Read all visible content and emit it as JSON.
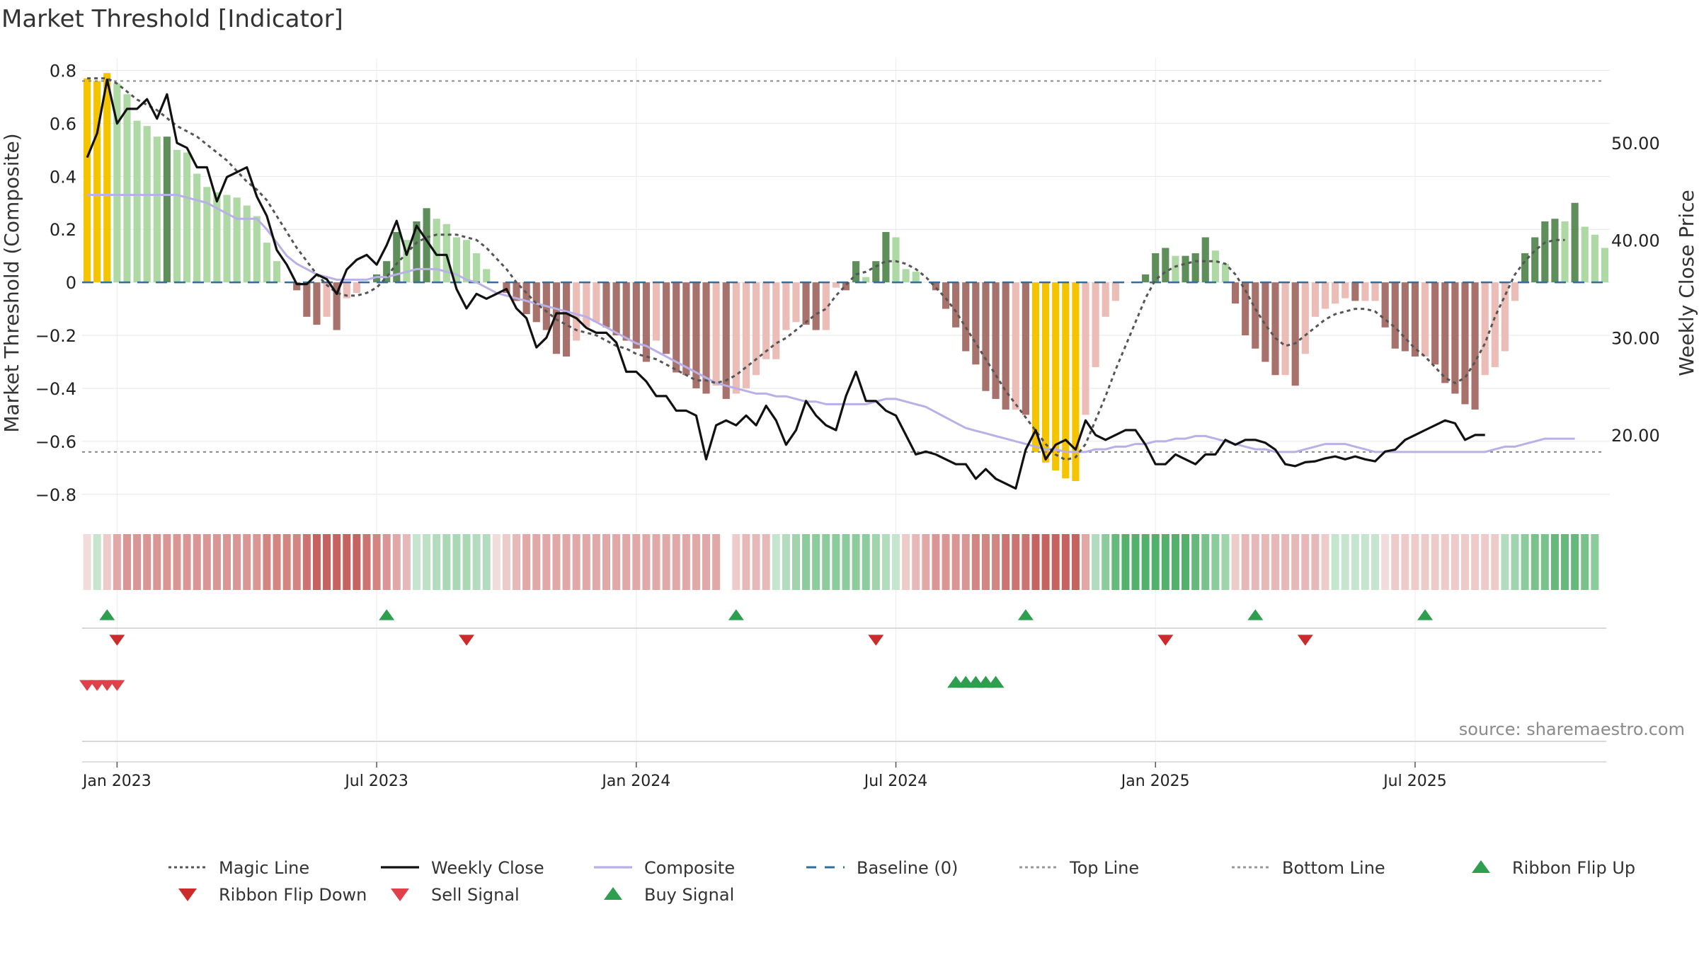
{
  "chart_data": {
    "type": "bar",
    "title": "Market Threshold [Indicator]",
    "ylabel": "Market Threshold (Composite)",
    "y2label": "Weekly Close Price",
    "source": "source: sharemaestro.com",
    "ylim": [
      -0.87,
      0.82
    ],
    "y2lim": [
      12,
      58
    ],
    "yticks": [
      "0.8",
      "0.6",
      "0.4",
      "0.2",
      "0",
      "−0.2",
      "−0.4",
      "−0.6",
      "−0.8"
    ],
    "yticks_values": [
      0.8,
      0.6,
      0.4,
      0.2,
      0,
      -0.2,
      -0.4,
      -0.6,
      -0.8
    ],
    "y2ticks": [
      "50.00",
      "40.00",
      "30.00",
      "20.00"
    ],
    "y2ticks_values": [
      50,
      40,
      30,
      20
    ],
    "xticks": [
      "Jan 2023",
      "Jul 2023",
      "Jan 2024",
      "Jul 2024",
      "Jan 2025",
      "Jul 2025"
    ],
    "xticks_weeks": [
      3,
      29,
      55,
      81,
      107,
      133
    ],
    "top_line": 0.76,
    "bottom_line": -0.64,
    "baseline": 0,
    "grid": true,
    "legend_position": "bottom",
    "x_dates": {
      "first_week": "2022-12-19",
      "last_week": "2025-09-15"
    },
    "composite_bars": [
      0.77,
      0.76,
      0.79,
      0.75,
      0.71,
      0.61,
      0.59,
      0.55,
      0.55,
      0.5,
      0.49,
      0.41,
      0.36,
      0.34,
      0.33,
      0.32,
      0.29,
      0.25,
      0.15,
      0.08,
      0.0,
      -0.03,
      -0.13,
      -0.16,
      -0.13,
      -0.18,
      -0.06,
      -0.04,
      0.0,
      0.03,
      0.08,
      0.19,
      0.16,
      0.23,
      0.28,
      0.24,
      0.22,
      0.17,
      0.16,
      0.11,
      0.05,
      0.0,
      -0.04,
      -0.07,
      -0.12,
      -0.15,
      -0.18,
      -0.27,
      -0.28,
      -0.22,
      -0.17,
      -0.15,
      -0.17,
      -0.2,
      -0.22,
      -0.25,
      -0.3,
      -0.22,
      -0.27,
      -0.34,
      -0.35,
      -0.4,
      -0.42,
      -0.39,
      -0.44,
      -0.42,
      -0.4,
      -0.35,
      -0.29,
      -0.29,
      -0.18,
      -0.15,
      -0.16,
      -0.18,
      -0.18,
      -0.02,
      -0.03,
      0.08,
      0.02,
      0.08,
      0.19,
      0.17,
      0.05,
      0.04,
      0.0,
      -0.03,
      -0.1,
      -0.17,
      -0.26,
      -0.31,
      -0.41,
      -0.44,
      -0.48,
      -0.48,
      -0.5,
      -0.64,
      -0.68,
      -0.71,
      -0.74,
      -0.75,
      -0.5,
      -0.32,
      -0.13,
      -0.07,
      0.0,
      0.0,
      0.03,
      0.11,
      0.13,
      0.1,
      0.1,
      0.11,
      0.17,
      0.12,
      0.07,
      -0.08,
      -0.2,
      -0.25,
      -0.3,
      -0.35,
      -0.35,
      -0.39,
      -0.27,
      -0.13,
      -0.1,
      -0.08,
      -0.06,
      -0.07,
      -0.07,
      -0.07,
      -0.17,
      -0.25,
      -0.26,
      -0.28,
      -0.28,
      -0.31,
      -0.38,
      -0.42,
      -0.46,
      -0.48,
      -0.35,
      -0.32,
      -0.26,
      -0.07,
      0.11,
      0.17,
      0.23,
      0.24,
      0.23,
      0.3,
      0.21,
      0.18,
      0.13
    ],
    "weekly_close": [
      48.5,
      51,
      56.5,
      52,
      53.5,
      53.5,
      54.5,
      52.5,
      55,
      50,
      49.5,
      47.5,
      47.5,
      44,
      46.5,
      47,
      47.5,
      44.5,
      42.5,
      39,
      37.5,
      35.5,
      35.5,
      36.5,
      36,
      34.5,
      37,
      38,
      38.5,
      37.5,
      39.5,
      42,
      38.5,
      41.5,
      40,
      38.5,
      38.5,
      35,
      33,
      34.5,
      34,
      34.5,
      35,
      33,
      32,
      29,
      30,
      32.5,
      32.5,
      32,
      31,
      30.5,
      30.5,
      29.5,
      26.5,
      26.5,
      25.5,
      24,
      24,
      22.5,
      22.5,
      22,
      17.5,
      21,
      21.5,
      21,
      22,
      21,
      23,
      21.5,
      19,
      20.5,
      23.5,
      22,
      21,
      20.5,
      24,
      26.5,
      23.5,
      23.5,
      22.5,
      22,
      20,
      18,
      18.3,
      18,
      17.5,
      17,
      17,
      15.5,
      16.5,
      15.5,
      15,
      14.5,
      18.5,
      20.5,
      17.5,
      19,
      19.5,
      18.5,
      21.5,
      20,
      19.5,
      20,
      20.5,
      20.5,
      19,
      17,
      17,
      18,
      17.5,
      17,
      18,
      18,
      19.5,
      19,
      19.5,
      19.5,
      19.2,
      18.5,
      17,
      16.8,
      17.2,
      17.3,
      17.6,
      17.8,
      17.5,
      17.8,
      17.5,
      17.3,
      18.3,
      18.5,
      19.5,
      20,
      20.5,
      21,
      21.5,
      21.2,
      19.5,
      20,
      20
    ],
    "composite_line": [
      0.33,
      0.33,
      0.33,
      0.33,
      0.33,
      0.33,
      0.33,
      0.33,
      0.33,
      0.33,
      0.32,
      0.31,
      0.3,
      0.28,
      0.26,
      0.24,
      0.24,
      0.24,
      0.2,
      0.15,
      0.1,
      0.07,
      0.05,
      0.03,
      0.02,
      0.01,
      0.01,
      0.01,
      0.01,
      0.02,
      0.02,
      0.03,
      0.04,
      0.05,
      0.05,
      0.05,
      0.04,
      0.03,
      0.01,
      0.0,
      -0.02,
      -0.04,
      -0.05,
      -0.06,
      -0.07,
      -0.08,
      -0.09,
      -0.1,
      -0.11,
      -0.12,
      -0.13,
      -0.15,
      -0.17,
      -0.19,
      -0.21,
      -0.23,
      -0.24,
      -0.26,
      -0.28,
      -0.3,
      -0.32,
      -0.34,
      -0.36,
      -0.38,
      -0.39,
      -0.4,
      -0.41,
      -0.42,
      -0.42,
      -0.43,
      -0.43,
      -0.44,
      -0.45,
      -0.45,
      -0.46,
      -0.46,
      -0.46,
      -0.46,
      -0.46,
      -0.45,
      -0.44,
      -0.44,
      -0.45,
      -0.46,
      -0.47,
      -0.49,
      -0.51,
      -0.53,
      -0.55,
      -0.56,
      -0.57,
      -0.58,
      -0.59,
      -0.6,
      -0.61,
      -0.62,
      -0.63,
      -0.63,
      -0.64,
      -0.64,
      -0.64,
      -0.63,
      -0.63,
      -0.62,
      -0.62,
      -0.61,
      -0.61,
      -0.6,
      -0.6,
      -0.59,
      -0.59,
      -0.58,
      -0.58,
      -0.59,
      -0.6,
      -0.61,
      -0.62,
      -0.63,
      -0.63,
      -0.64,
      -0.64,
      -0.64,
      -0.63,
      -0.62,
      -0.61,
      -0.61,
      -0.61,
      -0.62,
      -0.63,
      -0.64,
      -0.64,
      -0.64,
      -0.64,
      -0.64,
      -0.64,
      -0.64,
      -0.64,
      -0.64,
      -0.64,
      -0.64,
      -0.64,
      -0.63,
      -0.62,
      -0.62,
      -0.61,
      -0.6,
      -0.59,
      -0.59,
      -0.59,
      -0.59
    ],
    "magic_line": [
      0.77,
      0.77,
      0.77,
      0.75,
      0.72,
      0.69,
      0.67,
      0.65,
      0.62,
      0.59,
      0.57,
      0.55,
      0.52,
      0.49,
      0.46,
      0.42,
      0.38,
      0.35,
      0.31,
      0.25,
      0.19,
      0.13,
      0.08,
      0.03,
      -0.01,
      -0.04,
      -0.05,
      -0.05,
      -0.04,
      -0.02,
      0.02,
      0.07,
      0.11,
      0.15,
      0.17,
      0.18,
      0.18,
      0.18,
      0.17,
      0.16,
      0.13,
      0.09,
      0.05,
      0.0,
      -0.04,
      -0.08,
      -0.11,
      -0.14,
      -0.16,
      -0.18,
      -0.19,
      -0.2,
      -0.22,
      -0.24,
      -0.25,
      -0.27,
      -0.28,
      -0.29,
      -0.31,
      -0.33,
      -0.35,
      -0.37,
      -0.37,
      -0.38,
      -0.37,
      -0.35,
      -0.32,
      -0.29,
      -0.26,
      -0.23,
      -0.21,
      -0.18,
      -0.15,
      -0.12,
      -0.1,
      -0.05,
      -0.01,
      0.03,
      0.04,
      0.06,
      0.08,
      0.08,
      0.07,
      0.05,
      0.02,
      -0.02,
      -0.06,
      -0.11,
      -0.17,
      -0.23,
      -0.29,
      -0.35,
      -0.41,
      -0.46,
      -0.51,
      -0.56,
      -0.61,
      -0.65,
      -0.67,
      -0.66,
      -0.61,
      -0.52,
      -0.43,
      -0.33,
      -0.24,
      -0.15,
      -0.06,
      0.01,
      0.04,
      0.06,
      0.07,
      0.08,
      0.08,
      0.08,
      0.07,
      0.03,
      -0.03,
      -0.1,
      -0.16,
      -0.21,
      -0.24,
      -0.23,
      -0.2,
      -0.17,
      -0.14,
      -0.12,
      -0.11,
      -0.1,
      -0.1,
      -0.11,
      -0.14,
      -0.17,
      -0.21,
      -0.25,
      -0.28,
      -0.32,
      -0.36,
      -0.38,
      -0.36,
      -0.3,
      -0.23,
      -0.13,
      -0.05,
      0.03,
      0.08,
      0.12,
      0.15,
      0.16,
      0.16
    ],
    "ribbon_strength": [
      -0.2,
      0.3,
      -0.3,
      -0.5,
      -0.6,
      -0.6,
      -0.6,
      -0.6,
      -0.6,
      -0.6,
      -0.6,
      -0.6,
      -0.6,
      -0.6,
      -0.6,
      -0.6,
      -0.6,
      -0.6,
      -0.7,
      -0.7,
      -0.7,
      -0.7,
      -0.8,
      -0.9,
      -0.9,
      -0.9,
      -0.9,
      -0.9,
      -0.8,
      -0.7,
      -0.6,
      -0.5,
      -0.4,
      0.3,
      0.35,
      0.4,
      0.45,
      0.45,
      0.45,
      0.4,
      0.4,
      -0.2,
      -0.3,
      -0.4,
      -0.5,
      -0.5,
      -0.5,
      -0.5,
      -0.5,
      -0.5,
      -0.5,
      -0.5,
      -0.5,
      -0.5,
      -0.5,
      -0.5,
      -0.5,
      -0.5,
      -0.5,
      -0.5,
      -0.5,
      -0.5,
      -0.5,
      -0.5,
      null,
      -0.3,
      -0.4,
      -0.4,
      -0.4,
      0.3,
      0.4,
      0.5,
      0.6,
      0.6,
      0.6,
      0.6,
      0.6,
      0.6,
      0.6,
      0.5,
      0.4,
      0.3,
      -0.3,
      -0.4,
      -0.5,
      -0.6,
      -0.6,
      -0.6,
      -0.6,
      -0.7,
      -0.7,
      -0.7,
      -0.8,
      -0.8,
      -0.8,
      -0.9,
      -0.9,
      -0.9,
      -0.9,
      -0.9,
      -0.5,
      0.4,
      0.6,
      0.8,
      0.9,
      0.9,
      0.9,
      0.9,
      0.9,
      0.9,
      0.9,
      0.8,
      0.7,
      0.6,
      0.5,
      -0.3,
      -0.4,
      -0.4,
      -0.4,
      -0.4,
      -0.4,
      -0.4,
      -0.4,
      -0.4,
      -0.3,
      0.3,
      0.3,
      0.3,
      0.3,
      0.3,
      -0.2,
      -0.3,
      -0.3,
      -0.3,
      -0.3,
      -0.3,
      -0.3,
      -0.3,
      -0.3,
      -0.3,
      -0.3,
      -0.3,
      0.4,
      0.5,
      0.6,
      0.7,
      0.7,
      0.8,
      0.8,
      0.8,
      0.7,
      0.6
    ],
    "ribbon_flip_up_weeks": [
      2,
      30,
      65,
      94,
      117,
      134
    ],
    "ribbon_flip_down_weeks": [
      3,
      38,
      79,
      108,
      122
    ],
    "sell_signal_weeks": [
      0,
      1,
      2,
      3
    ],
    "buy_signal_weeks": [
      87,
      88,
      89,
      90,
      91
    ]
  },
  "legend": [
    {
      "label": "Magic Line",
      "symbol": "dotted",
      "color": "#555555"
    },
    {
      "label": "Weekly Close",
      "symbol": "solid",
      "color": "#111111"
    },
    {
      "label": "Composite",
      "symbol": "solid",
      "color": "#b8b0e6"
    },
    {
      "label": "Baseline (0)",
      "symbol": "dashed",
      "color": "#2f6f9f"
    },
    {
      "label": "Top Line",
      "symbol": "dotted",
      "color": "#999999"
    },
    {
      "label": "Bottom Line",
      "symbol": "dotted",
      "color": "#999999"
    },
    {
      "label": "Ribbon Flip Up",
      "symbol": "tri-up",
      "color": "#2e9e4f"
    },
    {
      "label": "Ribbon Flip Down",
      "symbol": "tri-down",
      "color": "#cc2b2b"
    },
    {
      "label": "Sell Signal",
      "symbol": "tri-down",
      "color": "#e0404a"
    },
    {
      "label": "Buy Signal",
      "symbol": "tri-up",
      "color": "#2e9e4f"
    }
  ],
  "colors": {
    "gold": "#f5c400",
    "pos_light": "#aed9a4",
    "pos_dark": "#5e8f5a",
    "neg_light": "#ecbcb6",
    "neg_dark": "#a8726c",
    "ribbon_pos": "#3fa85a",
    "ribbon_neg": "#c0504d",
    "weekly_close": "#111111",
    "composite_line": "#b8b0e6",
    "magic_line": "#555555",
    "baseline": "#2f6f9f",
    "threshold_line": "#888888"
  }
}
